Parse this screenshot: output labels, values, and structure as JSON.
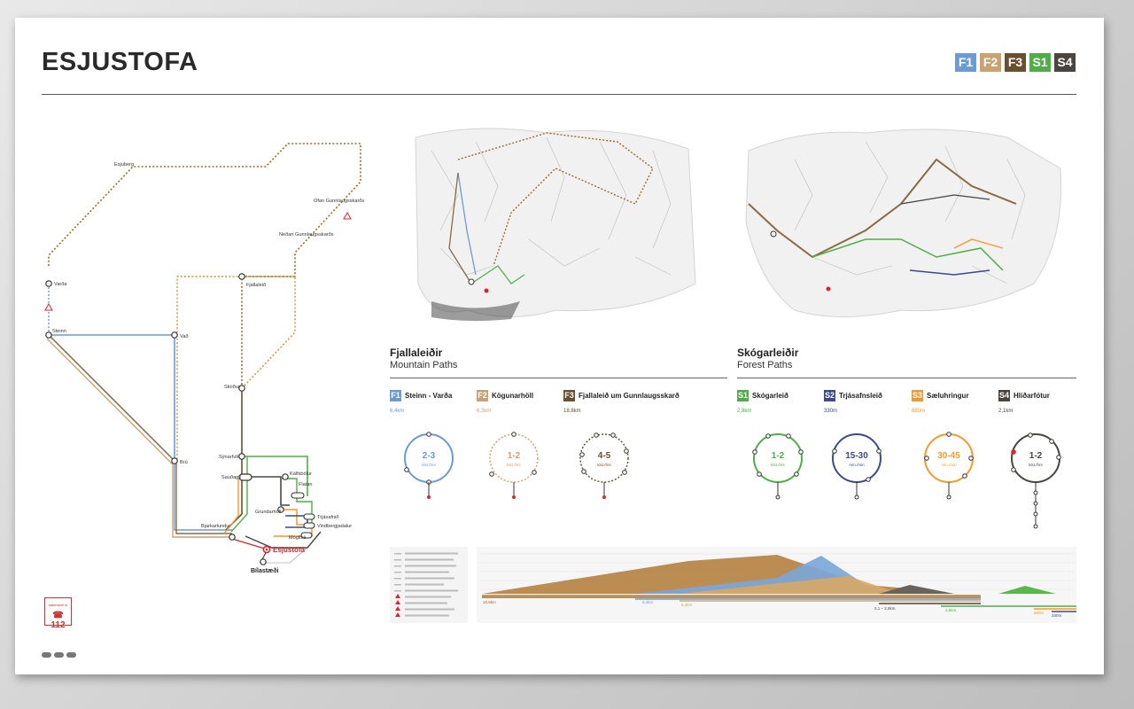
{
  "title": "ESJUSTOFA",
  "routes": [
    {
      "code": "F1",
      "color": "#6b9bd2",
      "name": "Steinn - Varða",
      "dist": "6,4km",
      "time": "2-3",
      "unit": "klst./hrs"
    },
    {
      "code": "F2",
      "color": "#c9a274",
      "name": "Kögunarhöll",
      "dist": "6,3km",
      "time": "1-2",
      "unit": "klst./hrs"
    },
    {
      "code": "F3",
      "color": "#6a5030",
      "name": "Fjallaleið um Gunnlaugsskarð",
      "dist": "18,8km",
      "time": "4-5",
      "unit": "klst./hrs"
    },
    {
      "code": "S1",
      "color": "#4fae48",
      "name": "Skógarleið",
      "dist": "2,8km",
      "time": "1-2",
      "unit": "klst./hrs"
    },
    {
      "code": "S2",
      "color": "#3a4a8c",
      "name": "Trjásafnsleið",
      "dist": "330m",
      "time": "15-30",
      "unit": "mín./min"
    },
    {
      "code": "S3",
      "color": "#f29a2e",
      "name": "Sæluhringur",
      "dist": "880m",
      "time": "30-45",
      "unit": "mín./min"
    },
    {
      "code": "S4",
      "color": "#4a4540",
      "name": "Hlíðarfótur",
      "dist": "2,1km",
      "time": "1-2",
      "unit": "klst./hrs"
    }
  ],
  "sections": {
    "mountain": {
      "title": "Fjallaleiðir",
      "subtitle": "Mountain Paths"
    },
    "forest": {
      "title": "Skógarleiðir",
      "subtitle": "Forest Paths"
    }
  },
  "map_labels": {
    "esjuberg": "Esjuberg",
    "ofan_gunnlaugsskard": "Ofan Gunnlaugsskarðs",
    "nedan_gunnlaugsskard": "Neðan Gunnlaugsskarðs",
    "varda": "Varða",
    "fjallaleid": "Fjallaleið",
    "steinn": "Steinn",
    "vad": "Vað",
    "skridur": "Skriður",
    "bru": "Brú",
    "synarholl": "Sýnarhóll",
    "saudagil": "Sauðagil",
    "kolfsbolur": "Kálfsbólur",
    "flatan": "Flatan",
    "grundarholl": "Grundarhóll",
    "trjasafnid": "Trjásafnið",
    "bjarkarlundur": "Bjarkarlundur",
    "vindbergjadalur": "Vindbergjadalur",
    "mogilsa": "Mógilsá",
    "esjustofa": "Esjustofa",
    "bilastaedi": "Bílastæði"
  },
  "contact": {
    "site": "safetravel.is",
    "phone": "112"
  },
  "profile": {
    "dist_labels": [
      "18,8km",
      "6,4km",
      "6,3km",
      "2,1 – 2,8km",
      "2,8km",
      "880m",
      "330m"
    ]
  }
}
